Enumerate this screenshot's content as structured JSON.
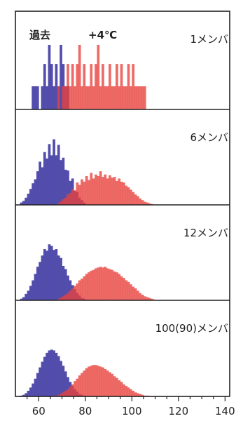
{
  "colors": {
    "past": "#4a45a8",
    "warm": "#e8413c",
    "axis": "#222222"
  },
  "chart_data": {
    "type": "histogram",
    "legend": [
      {
        "name": "過去",
        "color": "#4a45a8"
      },
      {
        "name": "+4℃",
        "color": "#e8413c"
      }
    ],
    "x_ticks": [
      60,
      80,
      100,
      120,
      140
    ],
    "xlim": [
      50,
      142
    ],
    "bin_width": 1,
    "panels": [
      {
        "label": "1メンバ",
        "ymax": 1,
        "series": [
          {
            "name": "過去",
            "start": 56,
            "values": [
              0,
              0.28,
              0.28,
              0.28,
              0,
              0.28,
              0.55,
              0.28,
              0.78,
              0.55,
              0.28,
              0.55,
              0.28,
              0.78,
              0.55,
              0.28,
              0.28,
              0,
              0,
              0,
              0
            ]
          },
          {
            "name": "+4℃",
            "start": 68,
            "values": [
              0.28,
              0,
              0.28,
              0.28,
              0.55,
              0.28,
              0.55,
              0.28,
              0.55,
              0.78,
              0.28,
              0.55,
              0.28,
              0.28,
              0.55,
              0.28,
              0.55,
              0.78,
              0.28,
              0.55,
              0.28,
              0.28,
              0.55,
              0.28,
              0.28,
              0.55,
              0.28,
              0.55,
              0.28,
              0.28,
              0.55,
              0.28,
              0.55,
              0.28,
              0.28,
              0.28,
              0.28,
              0.28
            ]
          }
        ]
      },
      {
        "label": "6メンバ",
        "ymax": 1,
        "series": [
          {
            "name": "過去",
            "start": 52,
            "values": [
              0.03,
              0.05,
              0.09,
              0.14,
              0.2,
              0.27,
              0.32,
              0.42,
              0.54,
              0.47,
              0.66,
              0.58,
              0.76,
              0.62,
              0.82,
              0.62,
              0.75,
              0.56,
              0.59,
              0.44,
              0.43,
              0.3,
              0.33,
              0.18,
              0.16,
              0.09,
              0.06,
              0.03
            ]
          },
          {
            "name": "+4℃",
            "start": 68,
            "values": [
              0.02,
              0.04,
              0.07,
              0.09,
              0.13,
              0.15,
              0.2,
              0.18,
              0.28,
              0.25,
              0.32,
              0.29,
              0.36,
              0.31,
              0.4,
              0.33,
              0.38,
              0.36,
              0.42,
              0.35,
              0.38,
              0.33,
              0.37,
              0.34,
              0.35,
              0.3,
              0.33,
              0.29,
              0.28,
              0.24,
              0.22,
              0.19,
              0.16,
              0.13,
              0.11,
              0.08,
              0.06,
              0.04,
              0.03,
              0.02,
              0.01
            ]
          }
        ]
      },
      {
        "label": "12メンバ",
        "ymax": 1,
        "series": [
          {
            "name": "過去",
            "start": 52,
            "values": [
              0.02,
              0.04,
              0.08,
              0.12,
              0.18,
              0.25,
              0.33,
              0.42,
              0.48,
              0.56,
              0.64,
              0.62,
              0.7,
              0.68,
              0.63,
              0.64,
              0.56,
              0.53,
              0.43,
              0.39,
              0.31,
              0.25,
              0.19,
              0.14,
              0.09,
              0.06,
              0.03,
              0.02
            ]
          },
          {
            "name": "+4℃",
            "start": 68,
            "values": [
              0.02,
              0.03,
              0.05,
              0.07,
              0.09,
              0.12,
              0.15,
              0.18,
              0.21,
              0.25,
              0.27,
              0.3,
              0.33,
              0.35,
              0.37,
              0.38,
              0.4,
              0.41,
              0.42,
              0.41,
              0.42,
              0.4,
              0.39,
              0.38,
              0.36,
              0.35,
              0.33,
              0.3,
              0.28,
              0.25,
              0.23,
              0.2,
              0.17,
              0.15,
              0.12,
              0.09,
              0.07,
              0.05,
              0.04,
              0.03,
              0.02,
              0.01
            ]
          }
        ]
      },
      {
        "label": "100(90)メンバ",
        "ymax": 1,
        "series": [
          {
            "name": "過去",
            "start": 52,
            "values": [
              0.01,
              0.02,
              0.04,
              0.07,
              0.11,
              0.16,
              0.22,
              0.29,
              0.36,
              0.43,
              0.49,
              0.54,
              0.57,
              0.58,
              0.57,
              0.54,
              0.5,
              0.44,
              0.38,
              0.31,
              0.24,
              0.18,
              0.13,
              0.09,
              0.06,
              0.03,
              0.02,
              0.01
            ]
          },
          {
            "name": "+4℃",
            "start": 66,
            "values": [
              0.01,
              0.01,
              0.02,
              0.03,
              0.05,
              0.07,
              0.09,
              0.12,
              0.15,
              0.19,
              0.22,
              0.26,
              0.29,
              0.32,
              0.35,
              0.37,
              0.38,
              0.39,
              0.39,
              0.38,
              0.37,
              0.36,
              0.34,
              0.32,
              0.3,
              0.28,
              0.25,
              0.23,
              0.2,
              0.18,
              0.15,
              0.13,
              0.11,
              0.09,
              0.07,
              0.05,
              0.04,
              0.03,
              0.02,
              0.01,
              0.01
            ]
          }
        ]
      }
    ]
  }
}
